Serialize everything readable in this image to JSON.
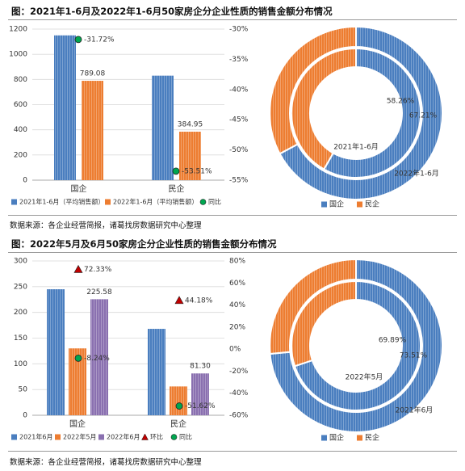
{
  "colors": {
    "blue": "#4a7ebf",
    "orange": "#ed7d31",
    "purple": "#8a70b0",
    "red": "#c00000",
    "green": "#00a650",
    "grid": "#d9d9d9"
  },
  "section1": {
    "title": "图：2021年1-6月及2022年1-6月50家房企分企业性质的销售金额分布情况",
    "source": "数据来源：各企业经营简报，诸葛找房数据研究中心整理"
  },
  "section2": {
    "title": "图：2022年5月及6月50家房企分企业性质的销售金额分布情况",
    "source": "数据来源：各企业经营简报，诸葛找房数据研究中心整理"
  },
  "chart_data": [
    {
      "type": "bar",
      "categories": [
        "国企",
        "民企"
      ],
      "ylim": [
        0,
        1200
      ],
      "yticks": [
        0,
        200,
        400,
        600,
        800,
        1000,
        1200
      ],
      "series": [
        {
          "name": "2021年1-6月（平均销售额）",
          "values": [
            1150,
            830
          ]
        },
        {
          "name": "2022年1-6月（平均销售额）",
          "values": [
            789.08,
            384.95
          ],
          "labels": [
            "789.08",
            "384.95"
          ]
        }
      ],
      "y2lim": [
        -55,
        -30
      ],
      "y2ticks": [
        "-30%",
        "-35%",
        "-40%",
        "-45%",
        "-50%",
        "-55%"
      ],
      "y2values": [
        -30,
        -35,
        -40,
        -45,
        -50,
        -55
      ],
      "markers": [
        {
          "name": "同比",
          "shape": "circle",
          "values": [
            -31.72,
            -53.51
          ],
          "labels": [
            "-31.72%",
            "-53.51%"
          ]
        }
      ],
      "legend_position": "bottom"
    },
    {
      "type": "pie",
      "variant": "donut",
      "categories": [
        "国企",
        "民企"
      ],
      "rings": [
        {
          "name": "2021年1-6月",
          "values": [
            58.26,
            41.74
          ],
          "label": "58.26%"
        },
        {
          "name": "2022年1-6月",
          "values": [
            67.21,
            32.79
          ],
          "label": "67.21%"
        }
      ],
      "legend_position": "bottom"
    },
    {
      "type": "bar",
      "categories": [
        "国企",
        "民企"
      ],
      "ylim": [
        0,
        300
      ],
      "yticks": [
        0,
        50,
        100,
        150,
        200,
        250,
        300
      ],
      "series": [
        {
          "name": "2021年6月",
          "values": [
            245,
            168
          ]
        },
        {
          "name": "2022年5月",
          "values": [
            130,
            56
          ]
        },
        {
          "name": "2022年6月",
          "values": [
            225.58,
            81.3
          ],
          "labels": [
            "225.58",
            "81.30"
          ]
        }
      ],
      "y2lim": [
        -60,
        80
      ],
      "y2ticks": [
        "-60%",
        "-40%",
        "-20%",
        "0%",
        "20%",
        "40%",
        "60%",
        "80%"
      ],
      "y2values": [
        -60,
        -40,
        -20,
        0,
        20,
        40,
        60,
        80
      ],
      "markers": [
        {
          "name": "环比",
          "shape": "triangle",
          "values": [
            72.33,
            44.18
          ],
          "labels": [
            "72.33%",
            "44.18%"
          ]
        },
        {
          "name": "同比",
          "shape": "circle",
          "values": [
            -8.24,
            -51.62
          ],
          "labels": [
            "-8.24%",
            "-51.62%"
          ]
        }
      ],
      "legend_position": "bottom"
    },
    {
      "type": "pie",
      "variant": "donut",
      "categories": [
        "国企",
        "民企"
      ],
      "rings": [
        {
          "name": "2022年5月",
          "values": [
            69.89,
            30.11
          ],
          "label": "69.89%"
        },
        {
          "name": "2021年6月",
          "values": [
            73.51,
            26.49
          ],
          "label": "73.51%"
        }
      ],
      "legend_position": "bottom"
    }
  ]
}
